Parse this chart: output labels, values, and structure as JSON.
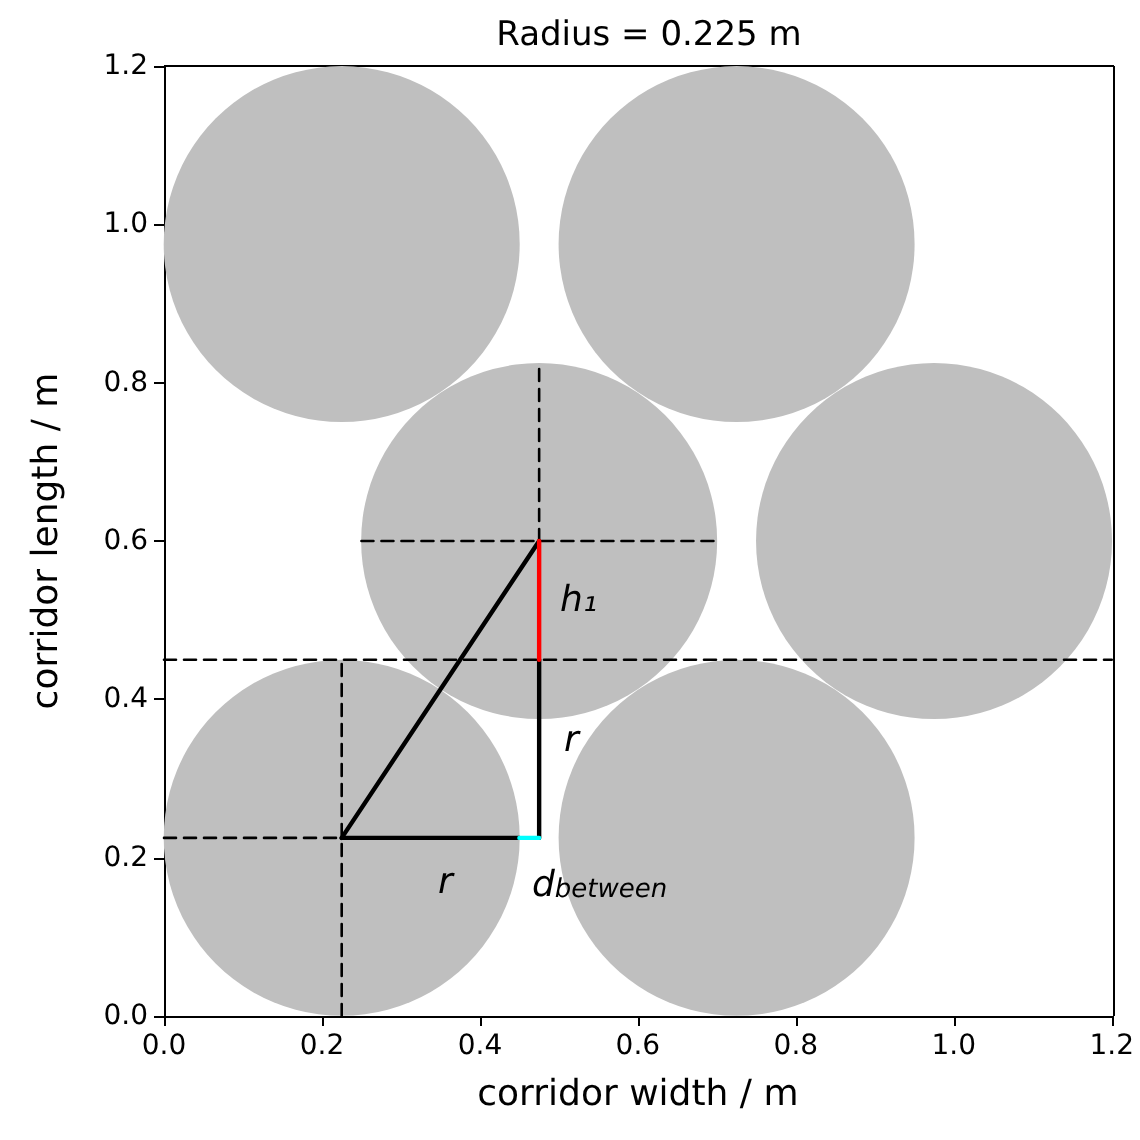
{
  "chart_data": {
    "type": "scatter",
    "title": "Radius = 0.225 m",
    "xlabel": "corridor width / m",
    "ylabel": "corridor length / m",
    "xlim": [
      0,
      1.2
    ],
    "ylim": [
      0,
      1.2
    ],
    "xticks": [
      {
        "value": 0,
        "label": "0.0"
      },
      0.2,
      0.4,
      0.6,
      0.8,
      {
        "value": 1,
        "label": "1.0"
      },
      1.2
    ],
    "yticks": [
      {
        "value": 0,
        "label": "0.0"
      },
      0.2,
      0.4,
      0.6,
      0.8,
      {
        "value": 1,
        "label": "1.0"
      },
      1.2
    ],
    "series": [
      {
        "marker": "circle",
        "color": "#bfbfbf",
        "x": [
          0.225,
          0.725,
          0.475,
          0.975,
          0.225,
          0.725
        ],
        "values": [
          0.225,
          0.225,
          0.6,
          0.6,
          0.975,
          0.975
        ]
      },
      {
        "type": "line",
        "color": "#000000",
        "line_style": "dashed",
        "x": [
          0,
          1.2
        ],
        "values": [
          0.45,
          0.45
        ]
      },
      {
        "type": "line",
        "color": "#000000",
        "line_style": "dashed",
        "x": [
          0,
          0.225
        ],
        "values": [
          0.225,
          0.225
        ]
      },
      {
        "type": "line",
        "color": "#000000",
        "line_style": "dashed",
        "x": [
          0.225,
          0.225
        ],
        "values": [
          0,
          0.45
        ]
      },
      {
        "type": "line",
        "color": "#000000",
        "line_style": "dashed",
        "x": [
          0.25,
          0.7
        ],
        "values": [
          0.6,
          0.6
        ]
      },
      {
        "type": "line",
        "color": "#000000",
        "line_style": "dashed",
        "x": [
          0.475,
          0.475
        ],
        "values": [
          0.6,
          0.825
        ]
      },
      {
        "type": "line",
        "color": "#000000",
        "line_style": "solid",
        "x": [
          0.225,
          0.475
        ],
        "values": [
          0.225,
          0.6
        ]
      },
      {
        "type": "line",
        "color": "#000000",
        "line_style": "solid",
        "x": [
          0.225,
          0.45
        ],
        "values": [
          0.225,
          0.225
        ]
      },
      {
        "type": "line",
        "color": "#000000",
        "line_style": "solid",
        "x": [
          0.475,
          0.475
        ],
        "values": [
          0.225,
          0.45
        ]
      },
      {
        "type": "line",
        "color": "#ff0000",
        "line_style": "solid",
        "x": [
          0.475,
          0.475
        ],
        "values": [
          0.45,
          0.6
        ]
      },
      {
        "type": "line",
        "color": "#00ffff",
        "line_style": "solid",
        "x": [
          0.45,
          0.475
        ],
        "values": [
          0.225,
          0.225
        ]
      }
    ],
    "annotations": [
      "h₁",
      "r",
      "r",
      "d$_{between}$"
    ]
  }
}
